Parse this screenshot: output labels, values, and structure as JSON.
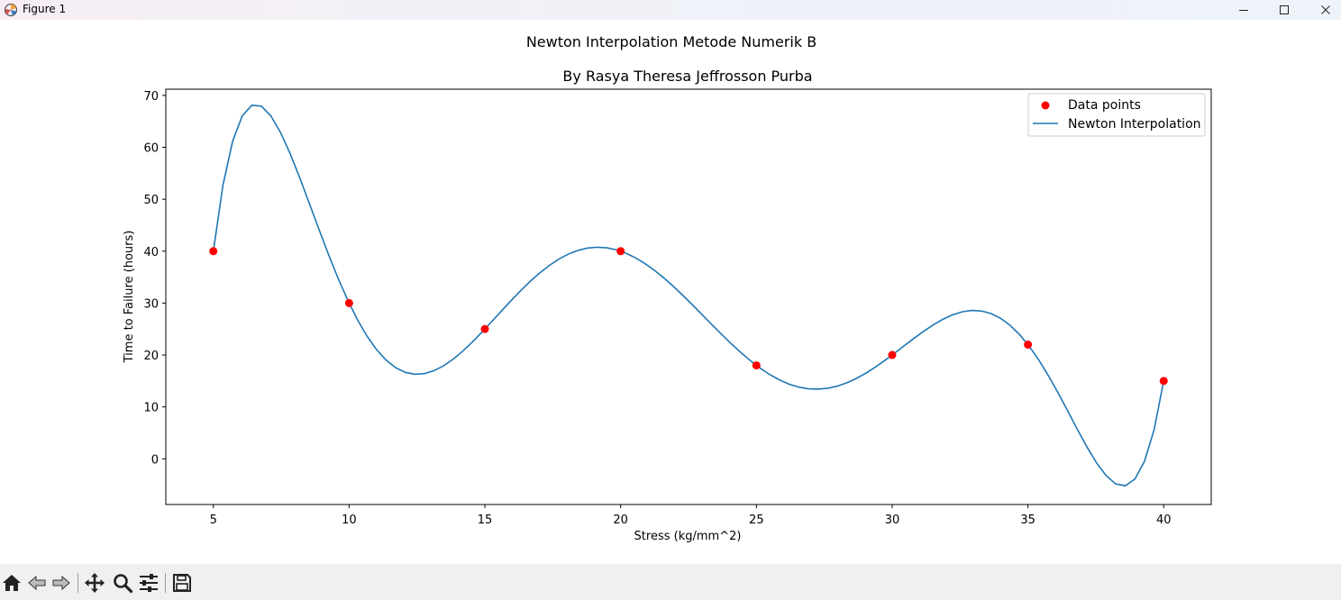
{
  "window": {
    "title": "Figure 1",
    "icon": "matplotlib-icon",
    "controls": {
      "minimize": "minimize-icon",
      "maximize": "maximize-icon",
      "close": "close-icon"
    }
  },
  "toolbar": {
    "buttons": [
      {
        "name": "home",
        "icon": "home-icon"
      },
      {
        "name": "back",
        "icon": "arrow-left-icon"
      },
      {
        "name": "forward",
        "icon": "arrow-right-icon"
      },
      {
        "name": "pan",
        "icon": "move-icon"
      },
      {
        "name": "zoom",
        "icon": "magnifier-icon"
      },
      {
        "name": "configure-subplots",
        "icon": "sliders-icon"
      },
      {
        "name": "save",
        "icon": "floppy-disk-icon"
      }
    ]
  },
  "chart_data": {
    "type": "line",
    "suptitle": "Newton Interpolation Metode Numerik B",
    "title": "By Rasya Theresa Jeffrosson Purba",
    "xlabel": "Stress (kg/mm^2)",
    "ylabel": "Time to Failure (hours)",
    "xlim": [
      3.25,
      41.75
    ],
    "ylim": [
      -8.8,
      71.2
    ],
    "xticks": [
      5,
      10,
      15,
      20,
      25,
      30,
      35,
      40
    ],
    "yticks": [
      0,
      10,
      20,
      30,
      40,
      50,
      60,
      70
    ],
    "grid": false,
    "legend_position": "top-right",
    "colors": {
      "points": "#ff0000",
      "line": "#1f77b4"
    },
    "series": [
      {
        "name": "Data points",
        "type": "scatter",
        "x": [
          5,
          10,
          15,
          20,
          25,
          30,
          35,
          40
        ],
        "y": [
          40,
          30,
          25,
          40,
          18,
          20,
          22,
          15
        ]
      },
      {
        "name": "Newton Interpolation",
        "type": "line",
        "x": [
          5,
          10,
          15,
          20,
          25,
          30,
          35,
          40
        ],
        "y": [
          40,
          30,
          25,
          40,
          18,
          20,
          22,
          15
        ]
      }
    ]
  }
}
